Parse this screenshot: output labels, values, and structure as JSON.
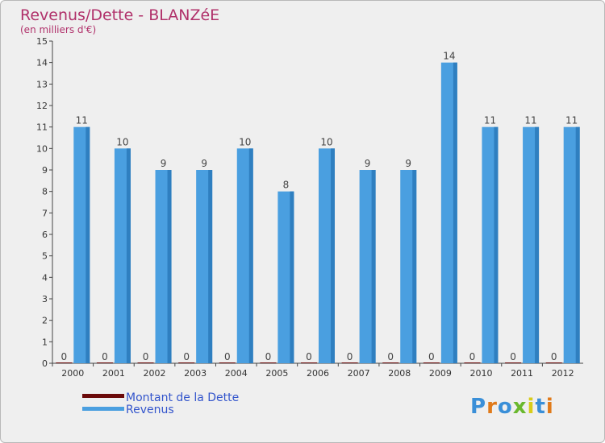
{
  "chart_data": {
    "type": "bar",
    "title": "Revenus/Dette - BLANZéE",
    "subtitle": "(en milliers d'€)",
    "categories": [
      "2000",
      "2001",
      "2002",
      "2003",
      "2004",
      "2005",
      "2006",
      "2007",
      "2008",
      "2009",
      "2010",
      "2011",
      "2012"
    ],
    "series": [
      {
        "name": "Montant de la Dette",
        "color": "#6b0a0a",
        "values": [
          0,
          0,
          0,
          0,
          0,
          0,
          0,
          0,
          0,
          0,
          0,
          0,
          0
        ]
      },
      {
        "name": "Revenus",
        "color": "#4a9fe0",
        "values": [
          11,
          10,
          9,
          9,
          10,
          8,
          10,
          9,
          9,
          14,
          11,
          11,
          11
        ]
      }
    ],
    "ylim": [
      0,
      15
    ],
    "yticks": [
      "0",
      "1",
      "2",
      "3",
      "4",
      "5",
      "6",
      "7",
      "8",
      "9",
      "10",
      "11",
      "12",
      "13",
      "14",
      "15"
    ],
    "grid": false,
    "legend": "bottom-left"
  },
  "legend": {
    "dette_label": "Montant de la Dette",
    "revenus_label": "Revenus"
  },
  "logo": {
    "text": "Proxiti"
  }
}
